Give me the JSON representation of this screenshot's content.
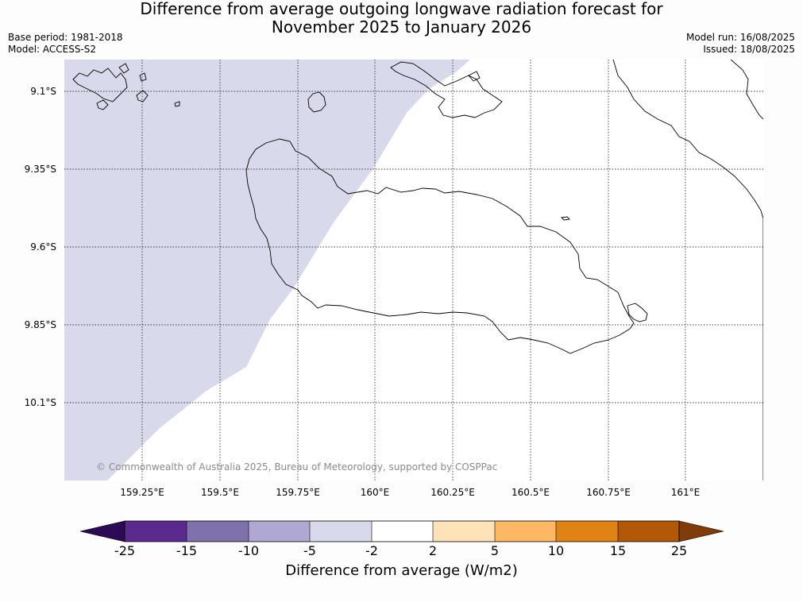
{
  "title_line1": "Difference from average outgoing longwave radiation forecast for",
  "title_line2": "November 2025 to January 2026",
  "meta_left": {
    "base_period": "Base period: 1981-2018",
    "model": "Model: ACCESS-S2"
  },
  "meta_right": {
    "model_run": "Model run: 16/08/2025",
    "issued": "Issued: 18/08/2025"
  },
  "copyright": "© Commonwealth of Australia 2025, Bureau of Meteorology, supported by COSPPac",
  "lat_labels": [
    "9.1°S",
    "9.35°S",
    "9.6°S",
    "9.85°S",
    "10.1°S"
  ],
  "lon_labels": [
    "159.25°E",
    "159.5°E",
    "159.75°E",
    "160°E",
    "160.25°E",
    "160.5°E",
    "160.75°E",
    "161°E"
  ],
  "colorbar": {
    "title": "Difference from average (W/m2)",
    "tick_labels": [
      "-25",
      "-15",
      "-10",
      "-5",
      "-2",
      "2",
      "5",
      "10",
      "15",
      "25"
    ],
    "colors": [
      "#2d0a55",
      "#5a2a8f",
      "#7f72ac",
      "#aea8d2",
      "#d8d9eb",
      "#ffffff",
      "#fee2b8",
      "#fdb863",
      "#e08214",
      "#b35806",
      "#7f3b08"
    ],
    "shown_class_color": "#d8d9eb"
  }
}
